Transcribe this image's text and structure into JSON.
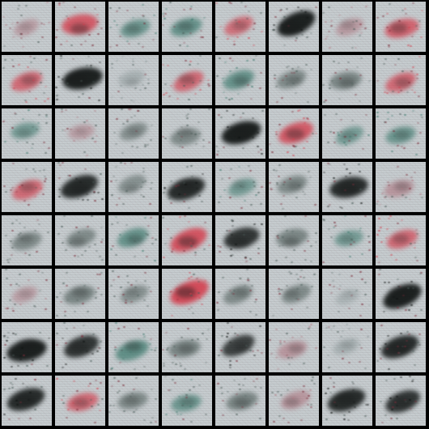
{
  "grid": {
    "rows": 8,
    "cols": 8,
    "background": "#000000",
    "tile_background": "#c4cacd",
    "palette": {
      "r": "#d4404f",
      "k": "#0c100f",
      "t": "#3e7a6e",
      "p": "#b07a84",
      "g": "#596764",
      "n": "#8d999a"
    },
    "tiles": [
      {
        "c": "p",
        "i": 0.3
      },
      {
        "c": "r",
        "i": 0.8
      },
      {
        "c": "t",
        "i": 0.5
      },
      {
        "c": "t",
        "i": 0.6
      },
      {
        "c": "r",
        "i": 0.5
      },
      {
        "c": "k",
        "i": 1.0
      },
      {
        "c": "p",
        "i": 0.4
      },
      {
        "c": "r",
        "i": 0.7
      },
      {
        "c": "r",
        "i": 0.6
      },
      {
        "c": "k",
        "i": 1.0
      },
      {
        "c": "n",
        "i": 0.3
      },
      {
        "c": "r",
        "i": 0.6
      },
      {
        "c": "t",
        "i": 0.6
      },
      {
        "c": "g",
        "i": 0.5
      },
      {
        "c": "g",
        "i": 0.6
      },
      {
        "c": "r",
        "i": 0.6
      },
      {
        "c": "t",
        "i": 0.4
      },
      {
        "c": "p",
        "i": 0.3
      },
      {
        "c": "g",
        "i": 0.4
      },
      {
        "c": "g",
        "i": 0.5
      },
      {
        "c": "k",
        "i": 1.0
      },
      {
        "c": "r",
        "i": 0.8
      },
      {
        "c": "t",
        "i": 0.4
      },
      {
        "c": "t",
        "i": 0.5
      },
      {
        "c": "r",
        "i": 0.6
      },
      {
        "c": "k",
        "i": 0.9
      },
      {
        "c": "g",
        "i": 0.4
      },
      {
        "c": "k",
        "i": 0.9
      },
      {
        "c": "t",
        "i": 0.4
      },
      {
        "c": "g",
        "i": 0.5
      },
      {
        "c": "k",
        "i": 0.9
      },
      {
        "c": "p",
        "i": 0.5
      },
      {
        "c": "g",
        "i": 0.5
      },
      {
        "c": "g",
        "i": 0.5
      },
      {
        "c": "t",
        "i": 0.6
      },
      {
        "c": "r",
        "i": 0.9
      },
      {
        "c": "k",
        "i": 0.8
      },
      {
        "c": "g",
        "i": 0.6
      },
      {
        "c": "t",
        "i": 0.4
      },
      {
        "c": "r",
        "i": 0.6
      },
      {
        "c": "p",
        "i": 0.3
      },
      {
        "c": "g",
        "i": 0.6
      },
      {
        "c": "g",
        "i": 0.4
      },
      {
        "c": "r",
        "i": 1.0
      },
      {
        "c": "g",
        "i": 0.5
      },
      {
        "c": "g",
        "i": 0.5
      },
      {
        "c": "n",
        "i": 0.2
      },
      {
        "c": "k",
        "i": 1.0
      },
      {
        "c": "k",
        "i": 1.0
      },
      {
        "c": "k",
        "i": 0.8
      },
      {
        "c": "t",
        "i": 0.7
      },
      {
        "c": "g",
        "i": 0.6
      },
      {
        "c": "k",
        "i": 0.7
      },
      {
        "c": "p",
        "i": 0.5
      },
      {
        "c": "n",
        "i": 0.3
      },
      {
        "c": "k",
        "i": 0.9
      },
      {
        "c": "k",
        "i": 0.9
      },
      {
        "c": "r",
        "i": 0.6
      },
      {
        "c": "g",
        "i": 0.5
      },
      {
        "c": "t",
        "i": 0.5
      },
      {
        "c": "g",
        "i": 0.6
      },
      {
        "c": "p",
        "i": 0.5
      },
      {
        "c": "k",
        "i": 0.9
      },
      {
        "c": "k",
        "i": 0.8
      }
    ]
  }
}
